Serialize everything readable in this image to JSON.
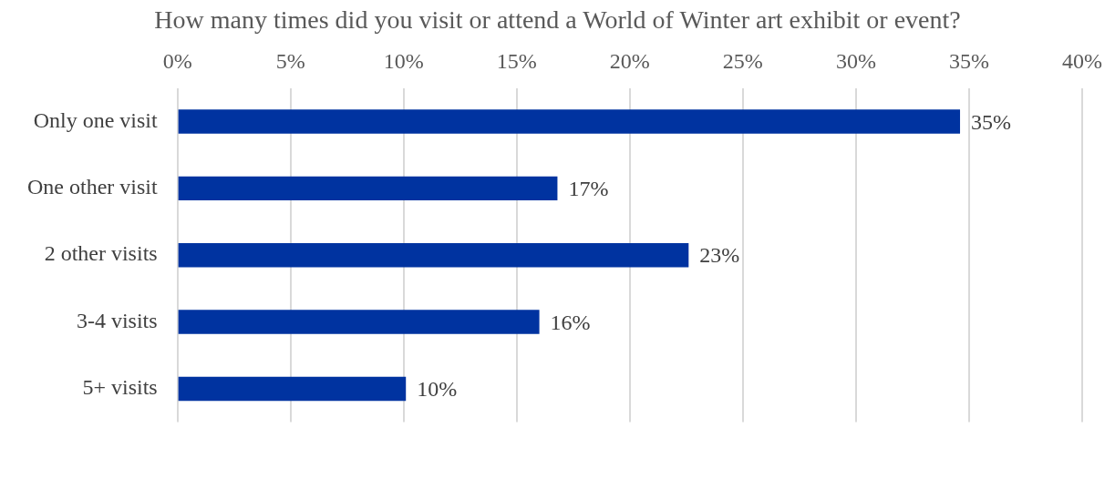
{
  "chart_data": {
    "type": "bar",
    "orientation": "horizontal",
    "title": "How many times did you visit or attend a World of Winter art exhibit or event?",
    "categories": [
      "Only one visit",
      "One other visit",
      "2 other visits",
      "3-4 visits",
      "5+ visits"
    ],
    "values": [
      34.6,
      16.8,
      22.6,
      16.0,
      10.1
    ],
    "value_labels": [
      "35%",
      "17%",
      "23%",
      "16%",
      "10%"
    ],
    "color": "#0033a0",
    "xlim": [
      0,
      40
    ],
    "xticks": [
      {
        "value": 0,
        "label": "0%"
      },
      {
        "value": 5,
        "label": "5%"
      },
      {
        "value": 10,
        "label": "10%"
      },
      {
        "value": 15,
        "label": "15%"
      },
      {
        "value": 20,
        "label": "20%"
      },
      {
        "value": 25,
        "label": "25%"
      },
      {
        "value": 30,
        "label": "30%"
      },
      {
        "value": 35,
        "label": "35%"
      },
      {
        "value": 40,
        "label": "40%"
      }
    ],
    "grid": "x",
    "legend": false
  }
}
